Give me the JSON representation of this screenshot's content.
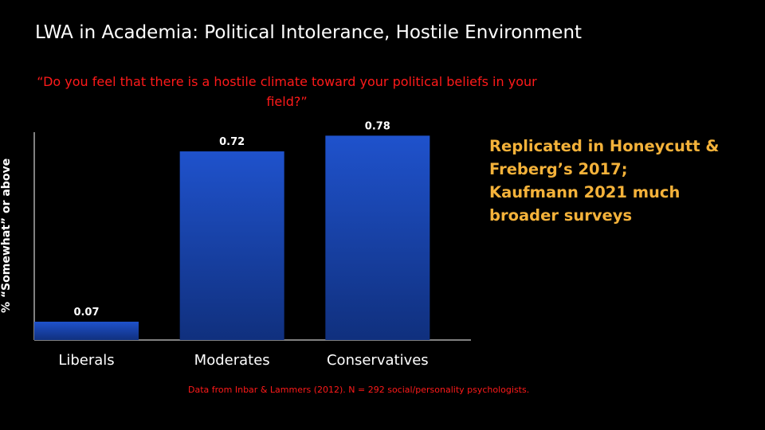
{
  "slide": {
    "title": "LWA in Academia: Political Intolerance, Hostile Environment",
    "question": "“Do you feel that there is a hostile climate toward your political beliefs in your field?”",
    "side_note": "Replicated in Honeycutt & Freberg’s 2017; Kaufmann 2021 much broader surveys",
    "source": "Data from Inbar & Lammers (2012). N = 292 social/personality psychologists."
  },
  "colors": {
    "background": "#000000",
    "bar": "#1a47b8",
    "question_text": "#ff1a1a",
    "side_note_text": "#f4b23a",
    "source_text": "#ff1a1a"
  },
  "chart_data": {
    "type": "bar",
    "categories": [
      "Liberals",
      "Moderates",
      "Conservatives"
    ],
    "values": [
      0.07,
      0.72,
      0.78
    ],
    "data_labels": [
      "0.07",
      "0.72",
      "0.78"
    ],
    "ylabel": "% “Somewhat” or above",
    "xlabel": "",
    "ylim": [
      0,
      0.8
    ],
    "grid": false,
    "legend": "none"
  }
}
